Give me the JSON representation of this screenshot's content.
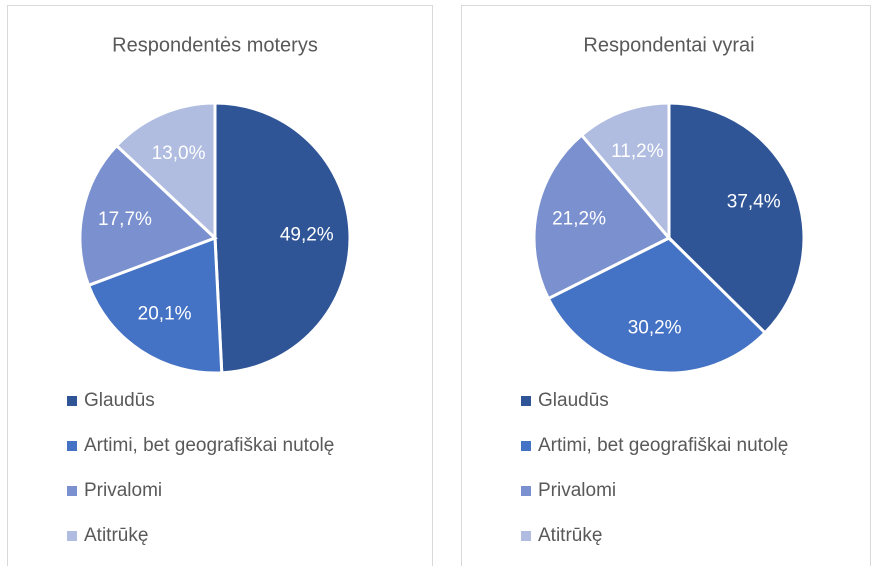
{
  "chart_data": [
    {
      "type": "pie",
      "title": "Respondentės moterys",
      "categories": [
        "Glaudūs",
        "Artimi, bet geografiškai nutolę",
        "Privalomi",
        "Atitrūkę"
      ],
      "values": [
        49.2,
        20.1,
        17.7,
        13.0
      ],
      "value_labels": [
        "49,2%",
        "20,1%",
        "17,7%",
        "13,0%"
      ],
      "colors": [
        "#2f5597",
        "#4472c4",
        "#7b91cf",
        "#b0bde0"
      ],
      "legend": "bottom"
    },
    {
      "type": "pie",
      "title": "Respondentai vyrai",
      "categories": [
        "Glaudūs",
        "Artimi, bet geografiškai nutolę",
        "Privalomi",
        "Atitrūkę"
      ],
      "values": [
        37.4,
        30.2,
        21.2,
        11.2
      ],
      "value_labels": [
        "37,4%",
        "30,2%",
        "21,2%",
        "11,2%"
      ],
      "colors": [
        "#2f5597",
        "#4472c4",
        "#7b91cf",
        "#b0bde0"
      ],
      "legend": "bottom"
    }
  ]
}
